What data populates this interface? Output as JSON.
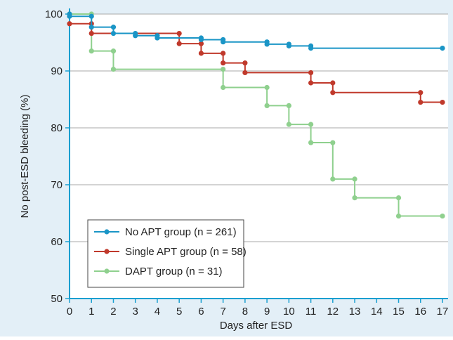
{
  "chart_data": {
    "type": "line",
    "step": true,
    "title": "",
    "xlabel": "Days after ESD",
    "ylabel": "No post-ESD bleeding (%)",
    "xlim": [
      0,
      17
    ],
    "ylim": [
      50,
      100
    ],
    "x_ticks": [
      0,
      1,
      2,
      3,
      4,
      5,
      6,
      7,
      8,
      9,
      10,
      11,
      12,
      13,
      14,
      15,
      16,
      17
    ],
    "y_ticks": [
      50,
      60,
      70,
      80,
      90,
      100
    ],
    "x_tick_labels": [
      "0",
      "1",
      "2",
      "3",
      "4",
      "5",
      "6",
      "7",
      "8",
      "9",
      "10",
      "11",
      "12",
      "13",
      "14",
      "15",
      "16",
      "17"
    ],
    "y_tick_labels": [
      "50",
      "60",
      "70",
      "80",
      "90",
      "100"
    ],
    "grid": "horizontal",
    "legend_position": "bottom-left",
    "background": "#e3eff7",
    "plot_background": "#ffffff",
    "axis_color": "#1a9fd0",
    "series": [
      {
        "name": "No APT group (n = 261)",
        "color": "#1a95c6",
        "points": [
          [
            0,
            100
          ],
          [
            0,
            99.6
          ],
          [
            1,
            99.6
          ],
          [
            1,
            97.7
          ],
          [
            2,
            97.7
          ],
          [
            2,
            96.6
          ],
          [
            3,
            96.6
          ],
          [
            3,
            96.2
          ],
          [
            4,
            96.2
          ],
          [
            4,
            95.8
          ],
          [
            6,
            95.8
          ],
          [
            6,
            95.5
          ],
          [
            7,
            95.5
          ],
          [
            7,
            95.1
          ],
          [
            9,
            95.1
          ],
          [
            9,
            94.7
          ],
          [
            10,
            94.7
          ],
          [
            10,
            94.4
          ],
          [
            11,
            94.4
          ],
          [
            11,
            94.0
          ],
          [
            17,
            94.0
          ]
        ]
      },
      {
        "name": "Single APT group (n = 58)",
        "color": "#c0392b",
        "points": [
          [
            0,
            98.3
          ],
          [
            1,
            98.3
          ],
          [
            1,
            96.6
          ],
          [
            5,
            96.6
          ],
          [
            5,
            94.8
          ],
          [
            6,
            94.8
          ],
          [
            6,
            93.1
          ],
          [
            7,
            93.1
          ],
          [
            7,
            91.4
          ],
          [
            8,
            91.4
          ],
          [
            8,
            89.7
          ],
          [
            11,
            89.7
          ],
          [
            11,
            87.9
          ],
          [
            12,
            87.9
          ],
          [
            12,
            86.2
          ],
          [
            16,
            86.2
          ],
          [
            16,
            84.5
          ],
          [
            17,
            84.5
          ]
        ]
      },
      {
        "name": "DAPT group (n = 31)",
        "color": "#8fd08e",
        "points": [
          [
            0,
            100
          ],
          [
            1,
            100
          ],
          [
            1,
            93.5
          ],
          [
            2,
            93.5
          ],
          [
            2,
            90.3
          ],
          [
            7,
            90.3
          ],
          [
            7,
            87.1
          ],
          [
            9,
            87.1
          ],
          [
            9,
            83.9
          ],
          [
            10,
            83.9
          ],
          [
            10,
            80.6
          ],
          [
            11,
            80.6
          ],
          [
            11,
            77.4
          ],
          [
            12,
            77.4
          ],
          [
            12,
            71.0
          ],
          [
            13,
            71.0
          ],
          [
            13,
            67.7
          ],
          [
            15,
            67.7
          ],
          [
            15,
            64.5
          ],
          [
            17,
            64.5
          ]
        ]
      }
    ]
  }
}
